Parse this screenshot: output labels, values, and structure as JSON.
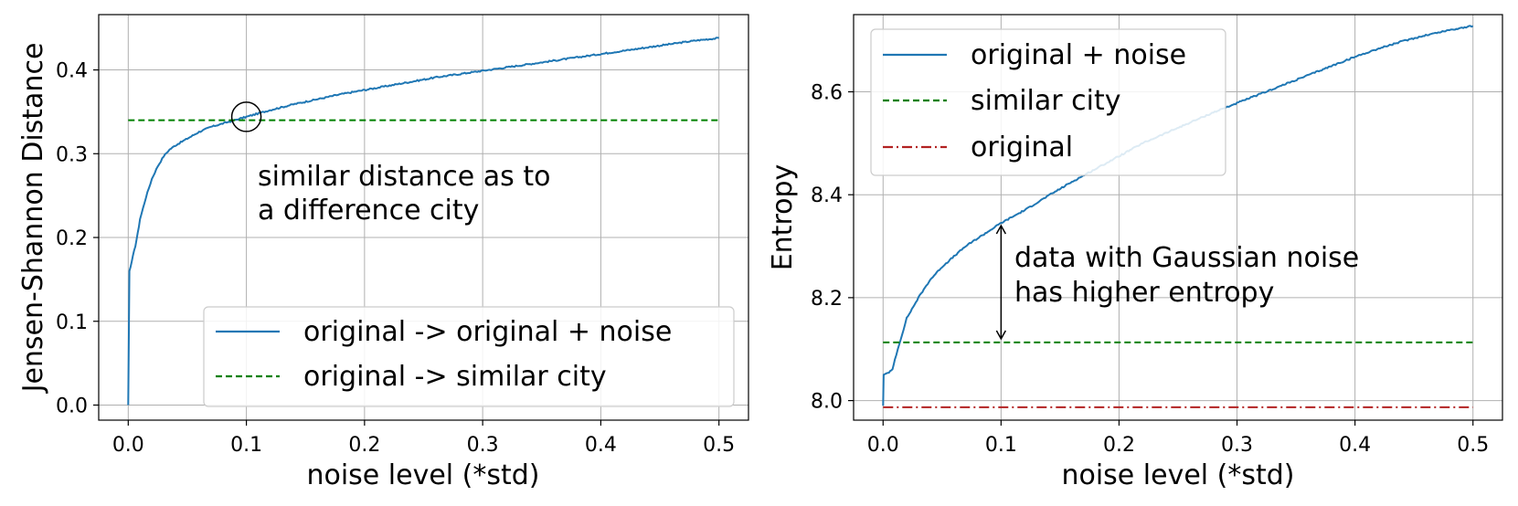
{
  "chart_data": [
    {
      "type": "line",
      "xlabel": "noise level (*std)",
      "ylabel": "Jensen-Shannon Distance",
      "xlim": [
        -0.025,
        0.525
      ],
      "ylim": [
        -0.018,
        0.466
      ],
      "xticks": [
        0.0,
        0.1,
        0.2,
        0.3,
        0.4,
        0.5
      ],
      "xtick_labels": [
        "0.0",
        "0.1",
        "0.2",
        "0.3",
        "0.4",
        "0.5"
      ],
      "yticks": [
        0.0,
        0.1,
        0.2,
        0.3,
        0.4
      ],
      "ytick_labels": [
        "0.0",
        "0.1",
        "0.2",
        "0.3",
        "0.4"
      ],
      "grid": true,
      "legend_position": "bottom-right",
      "series": [
        {
          "name": "original -> original + noise",
          "style": "solid",
          "color": "#1f77b4",
          "x": [
            0.0,
            0.001,
            0.002,
            0.004,
            0.006,
            0.008,
            0.01,
            0.015,
            0.02,
            0.025,
            0.03,
            0.035,
            0.04,
            0.05,
            0.06,
            0.07,
            0.08,
            0.09,
            0.1,
            0.12,
            0.14,
            0.16,
            0.18,
            0.2,
            0.22,
            0.24,
            0.26,
            0.28,
            0.3,
            0.32,
            0.34,
            0.36,
            0.38,
            0.4,
            0.42,
            0.44,
            0.46,
            0.48,
            0.5
          ],
          "y": [
            0.0,
            0.16,
            0.165,
            0.178,
            0.19,
            0.205,
            0.222,
            0.248,
            0.27,
            0.285,
            0.297,
            0.305,
            0.31,
            0.318,
            0.326,
            0.332,
            0.336,
            0.34,
            0.344,
            0.352,
            0.359,
            0.365,
            0.371,
            0.376,
            0.381,
            0.386,
            0.391,
            0.395,
            0.399,
            0.403,
            0.407,
            0.411,
            0.415,
            0.419,
            0.423,
            0.427,
            0.431,
            0.435,
            0.438
          ]
        },
        {
          "name": "original -> similar city",
          "style": "dashed",
          "color": "#008000",
          "x": [
            0.0,
            0.5
          ],
          "y": [
            0.34,
            0.34
          ]
        }
      ],
      "annotations": [
        {
          "text_lines": [
            "similar distance as to",
            "a difference city"
          ],
          "marker": "circle",
          "x": 0.1,
          "y": 0.344
        }
      ]
    },
    {
      "type": "line",
      "xlabel": "noise level (*std)",
      "ylabel": "Entropy",
      "xlim": [
        -0.025,
        0.525
      ],
      "ylim": [
        7.962,
        8.75
      ],
      "xticks": [
        0.0,
        0.1,
        0.2,
        0.3,
        0.4,
        0.5
      ],
      "xtick_labels": [
        "0.0",
        "0.1",
        "0.2",
        "0.3",
        "0.4",
        "0.5"
      ],
      "yticks": [
        8.0,
        8.2,
        8.4,
        8.6
      ],
      "ytick_labels": [
        "8.0",
        "8.2",
        "8.4",
        "8.6"
      ],
      "grid": true,
      "legend_position": "top-left",
      "series": [
        {
          "name": "original + noise",
          "style": "solid",
          "color": "#1f77b4",
          "x": [
            0.0,
            0.0005,
            0.002,
            0.005,
            0.008,
            0.01,
            0.015,
            0.02,
            0.03,
            0.04,
            0.05,
            0.06,
            0.07,
            0.08,
            0.09,
            0.1,
            0.12,
            0.14,
            0.16,
            0.18,
            0.2,
            0.22,
            0.24,
            0.26,
            0.28,
            0.3,
            0.32,
            0.34,
            0.36,
            0.38,
            0.4,
            0.42,
            0.44,
            0.46,
            0.48,
            0.5
          ],
          "y": [
            7.99,
            8.05,
            8.052,
            8.055,
            8.06,
            8.08,
            8.12,
            8.16,
            8.2,
            8.235,
            8.26,
            8.28,
            8.3,
            8.315,
            8.33,
            8.345,
            8.37,
            8.398,
            8.425,
            8.45,
            8.475,
            8.5,
            8.52,
            8.54,
            8.56,
            8.578,
            8.596,
            8.614,
            8.632,
            8.65,
            8.668,
            8.684,
            8.698,
            8.71,
            8.72,
            8.728
          ]
        },
        {
          "name": "similar city",
          "style": "dashed",
          "color": "#008000",
          "x": [
            0.0,
            0.5
          ],
          "y": [
            8.113,
            8.113
          ]
        },
        {
          "name": "original",
          "style": "dashdot",
          "color": "#b22222",
          "x": [
            0.0,
            0.5
          ],
          "y": [
            7.987,
            7.987
          ]
        }
      ],
      "annotations": [
        {
          "text_lines": [
            "data with Gaussian noise",
            "has higher entropy"
          ],
          "marker": "double-arrow",
          "x": 0.1,
          "y_from": 8.12,
          "y_to": 8.34
        }
      ]
    }
  ]
}
